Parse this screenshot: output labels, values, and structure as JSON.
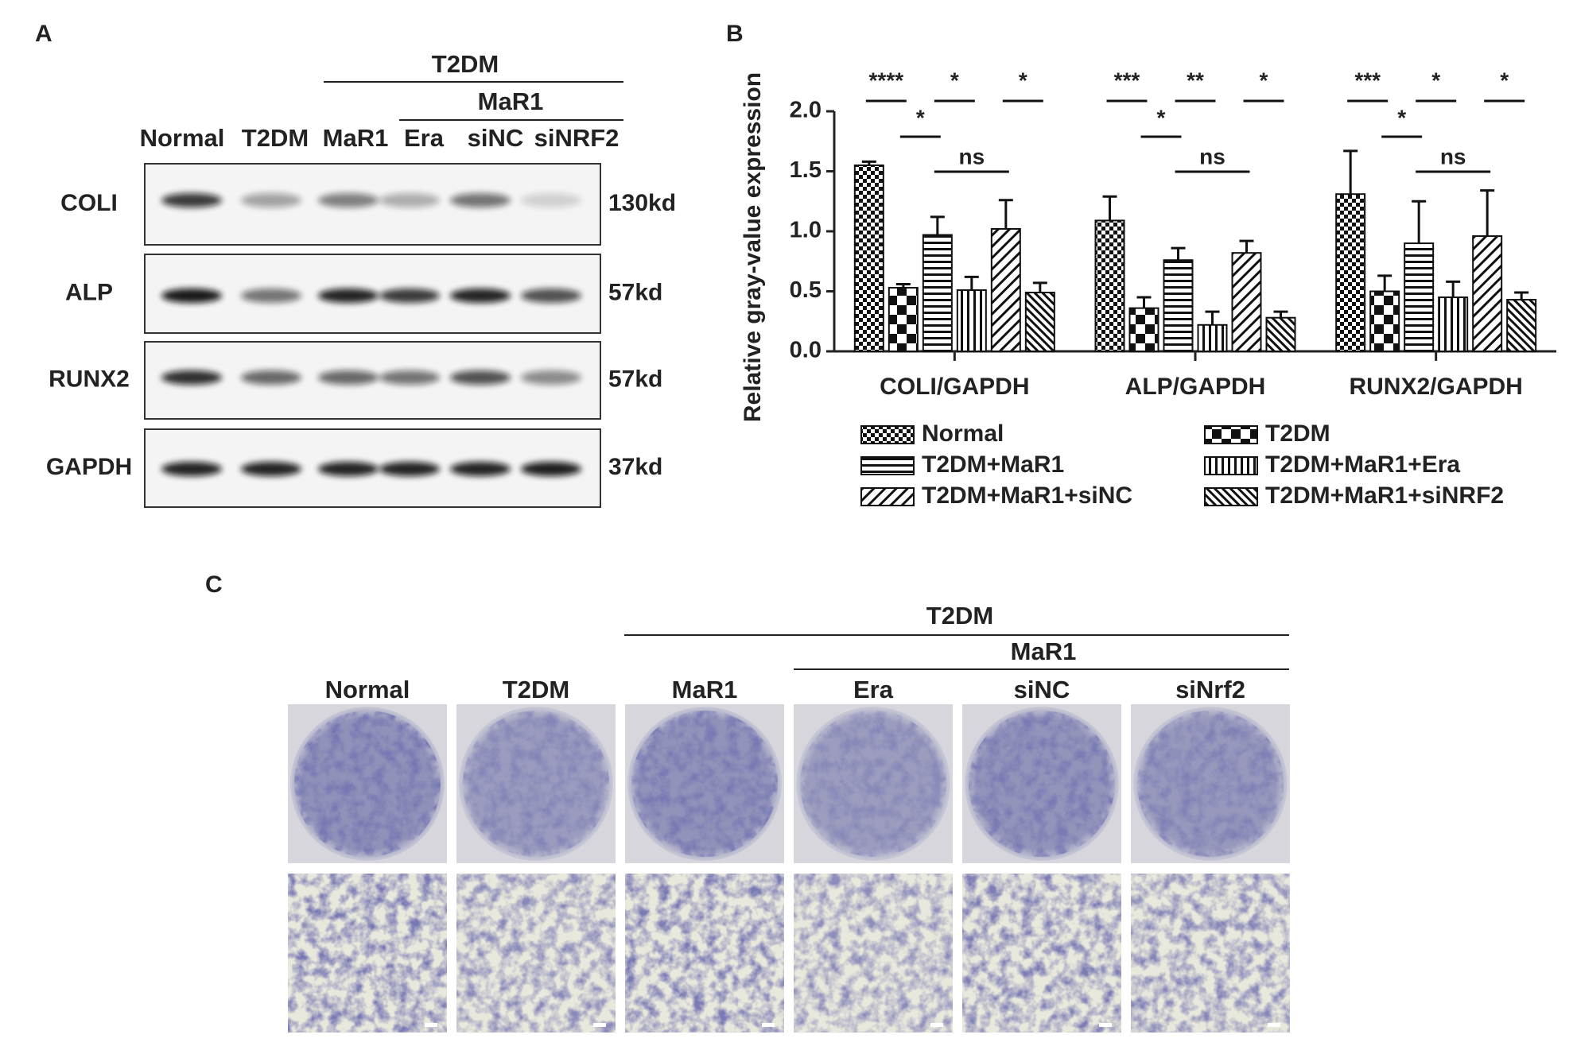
{
  "panel_a": {
    "label": "A",
    "header": "T2DM",
    "subheader": "MaR1",
    "lanes": [
      "Normal",
      "T2DM",
      "MaR1",
      "Era",
      "siNC",
      "siNRF2"
    ],
    "rows": [
      {
        "protein": "COLI",
        "size": "130kd"
      },
      {
        "protein": "ALP",
        "size": "57kd"
      },
      {
        "protein": "RUNX2",
        "size": "57kd"
      },
      {
        "protein": "GAPDH",
        "size": "37kd"
      }
    ]
  },
  "chart_data": {
    "type": "bar",
    "panel_label": "B",
    "y_label": "Relative gray-value expression",
    "categories": [
      "COLI/GAPDH",
      "ALP/GAPDH",
      "RUNX2/GAPDH"
    ],
    "series": [
      {
        "name": "Normal",
        "pattern": "checker-small",
        "values": [
          1.55,
          1.09,
          1.31
        ],
        "errors": [
          0.03,
          0.2,
          0.36
        ]
      },
      {
        "name": "T2DM",
        "pattern": "checker-large",
        "values": [
          0.53,
          0.36,
          0.5
        ],
        "errors": [
          0.03,
          0.09,
          0.13
        ]
      },
      {
        "name": "T2DM+MaR1",
        "pattern": "horizontal",
        "values": [
          0.97,
          0.76,
          0.9
        ],
        "errors": [
          0.15,
          0.1,
          0.35
        ]
      },
      {
        "name": "T2DM+MaR1+Era",
        "pattern": "vertical",
        "values": [
          0.51,
          0.22,
          0.45
        ],
        "errors": [
          0.11,
          0.11,
          0.13
        ]
      },
      {
        "name": "T2DM+MaR1+siNC",
        "pattern": "diagonal",
        "values": [
          1.02,
          0.82,
          0.96
        ],
        "errors": [
          0.24,
          0.1,
          0.38
        ]
      },
      {
        "name": "T2DM+MaR1+siNRF2",
        "pattern": "diagonal-dense",
        "values": [
          0.49,
          0.28,
          0.43
        ],
        "errors": [
          0.08,
          0.05,
          0.06
        ]
      }
    ],
    "ylim": [
      0,
      2
    ],
    "yticks": [
      {
        "value": 0,
        "label": "0.0"
      },
      0.5,
      {
        "value": 1,
        "label": "1.0"
      },
      1.5,
      {
        "value": 2,
        "label": "2.0"
      }
    ],
    "annotations": [
      [
        "****",
        "*",
        "*",
        "*",
        "ns"
      ],
      [
        "***",
        "*",
        "**",
        "*",
        "ns"
      ],
      [
        "***",
        "*",
        "*",
        "*",
        "ns"
      ]
    ]
  },
  "panel_c": {
    "label": "C",
    "header": "T2DM",
    "subheader": "MaR1",
    "columns": [
      "Normal",
      "T2DM",
      "MaR1",
      "Era",
      "siNC",
      "siNrf2"
    ]
  }
}
